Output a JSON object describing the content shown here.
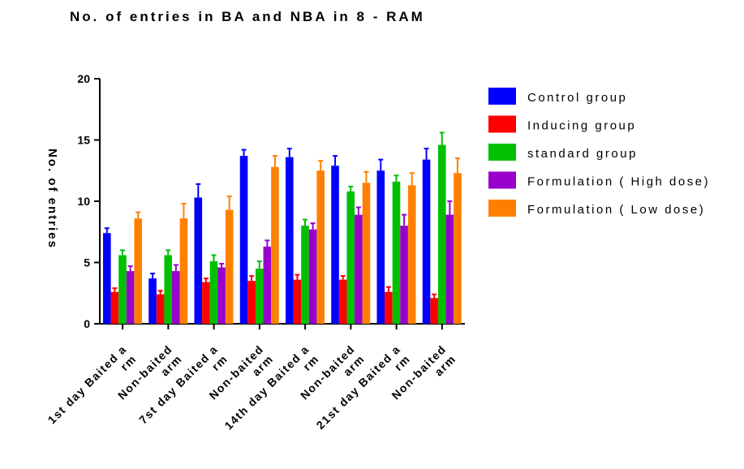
{
  "chart_data": {
    "type": "bar",
    "title": "No. of entries in BA and NBA in 8 - RAM",
    "ylabel": "No. of entries",
    "xlabel": "",
    "ylim": [
      0,
      20
    ],
    "yticks": [
      "0",
      "5",
      "10",
      "15",
      "20"
    ],
    "grid": false,
    "legend_position": "right",
    "categories": [
      [
        "1st day Baited a",
        "rm"
      ],
      [
        "Non-baited",
        "arm"
      ],
      [
        "7st day Baited a",
        "rm"
      ],
      [
        "Non-baited",
        "arm"
      ],
      [
        "14th day Baited a",
        "rm"
      ],
      [
        "Non-baited",
        "arm"
      ],
      [
        "21st day Baited a",
        "rm"
      ],
      [
        "Non-baited",
        "arm"
      ]
    ],
    "series": [
      {
        "name": "Control group",
        "color": "#0000ff",
        "values": [
          7.4,
          3.7,
          10.3,
          13.7,
          13.6,
          12.9,
          12.5,
          13.4
        ],
        "errors": [
          0.4,
          0.4,
          1.1,
          0.5,
          0.7,
          0.8,
          0.9,
          0.9
        ]
      },
      {
        "name": "Inducing group",
        "color": "#ff0000",
        "values": [
          2.6,
          2.4,
          3.4,
          3.5,
          3.6,
          3.6,
          2.6,
          2.1
        ],
        "errors": [
          0.3,
          0.3,
          0.3,
          0.4,
          0.4,
          0.3,
          0.4,
          0.3
        ]
      },
      {
        "name": "standard group",
        "color": "#00c000",
        "values": [
          5.6,
          5.6,
          5.1,
          4.5,
          8.0,
          10.8,
          11.6,
          14.6
        ],
        "errors": [
          0.4,
          0.4,
          0.5,
          0.6,
          0.5,
          0.4,
          0.5,
          1.0
        ]
      },
      {
        "name": "Formulation ( High dose)",
        "color": "#9900cc",
        "values": [
          4.3,
          4.3,
          4.6,
          6.3,
          7.7,
          8.9,
          8.0,
          8.9
        ],
        "errors": [
          0.4,
          0.5,
          0.3,
          0.5,
          0.5,
          0.6,
          0.9,
          1.1
        ]
      },
      {
        "name": "Formulation ( Low dose)",
        "color": "#ff8000",
        "values": [
          8.6,
          8.6,
          9.3,
          12.8,
          12.5,
          11.5,
          11.3,
          12.3
        ],
        "errors": [
          0.5,
          1.2,
          1.1,
          0.9,
          0.8,
          0.9,
          1.0,
          1.2
        ]
      }
    ]
  }
}
